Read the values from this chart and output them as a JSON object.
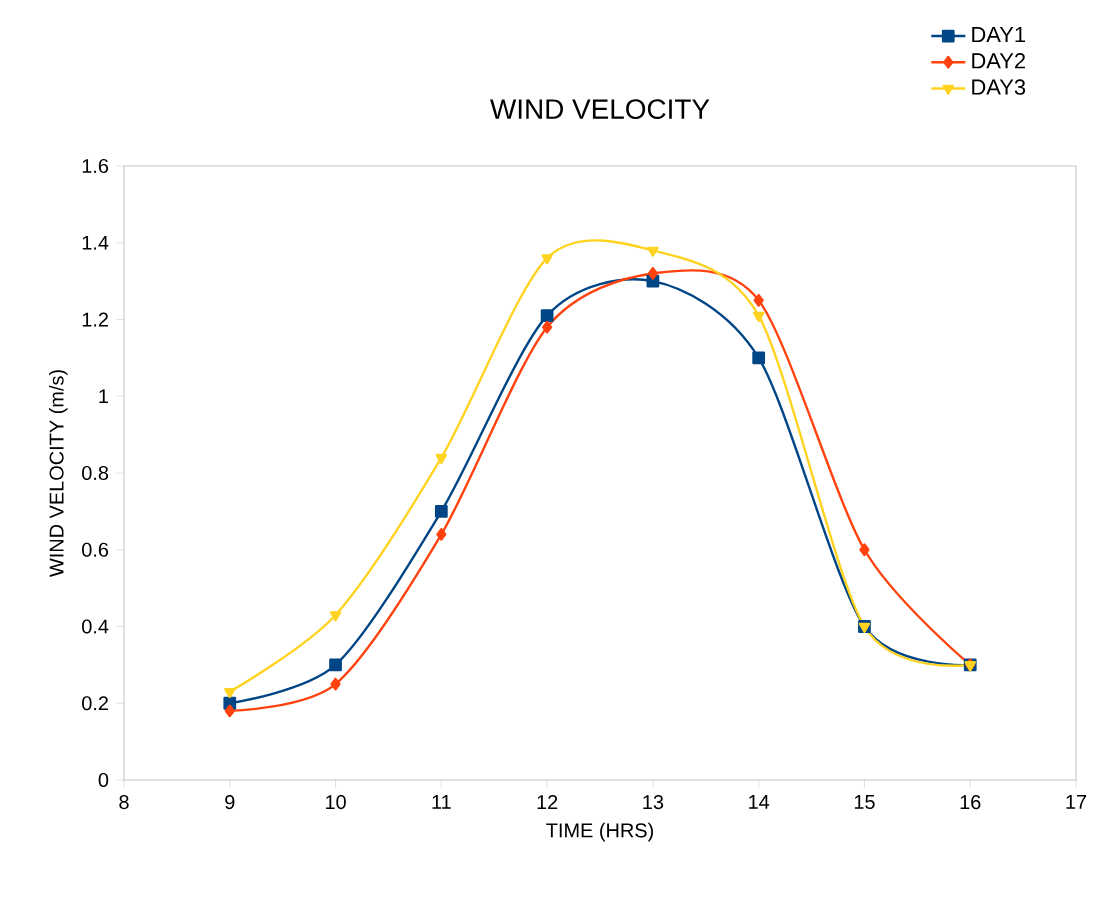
{
  "chart_data": {
    "type": "line",
    "title": "WIND VELOCITY",
    "xlabel": "TIME (HRS)",
    "ylabel": "WIND VELOCITY (m/s)",
    "x": [
      9,
      10,
      11,
      12,
      13,
      14,
      15,
      16
    ],
    "series": [
      {
        "name": "DAY1",
        "color": "#004586",
        "marker": "square",
        "values": [
          0.2,
          0.3,
          0.7,
          1.21,
          1.3,
          1.1,
          0.4,
          0.3
        ]
      },
      {
        "name": "DAY2",
        "color": "#ff420e",
        "marker": "diamond",
        "values": [
          0.18,
          0.25,
          0.64,
          1.18,
          1.32,
          1.25,
          0.6,
          0.3
        ]
      },
      {
        "name": "DAY3",
        "color": "#ffd320",
        "marker": "triangle",
        "values": [
          0.23,
          0.43,
          0.84,
          1.36,
          1.38,
          1.21,
          0.4,
          0.3
        ]
      }
    ],
    "xlim": [
      8,
      17
    ],
    "xticks": [
      8,
      9,
      10,
      11,
      12,
      13,
      14,
      15,
      16,
      17
    ],
    "ylim": [
      0,
      1.6
    ],
    "yticks": [
      0,
      0.2,
      0.4,
      0.6,
      0.8,
      1,
      1.2,
      1.4,
      1.6
    ],
    "legend": "top right",
    "line_style": "solid",
    "grid": false
  }
}
